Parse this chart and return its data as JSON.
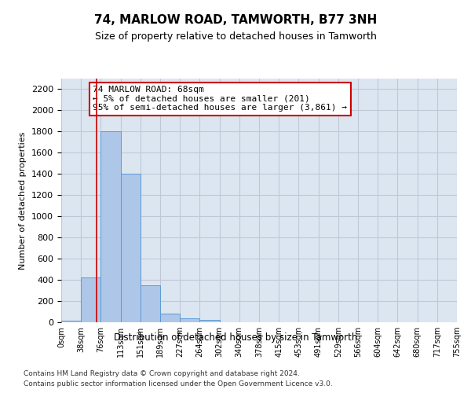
{
  "title": "74, MARLOW ROAD, TAMWORTH, B77 3NH",
  "subtitle": "Size of property relative to detached houses in Tamworth",
  "xlabel": "Distribution of detached houses by size in Tamworth",
  "ylabel": "Number of detached properties",
  "bin_labels": [
    "0sqm",
    "38sqm",
    "76sqm",
    "113sqm",
    "151sqm",
    "189sqm",
    "227sqm",
    "264sqm",
    "302sqm",
    "340sqm",
    "378sqm",
    "415sqm",
    "453sqm",
    "491sqm",
    "529sqm",
    "566sqm",
    "604sqm",
    "642sqm",
    "680sqm",
    "717sqm",
    "755sqm"
  ],
  "bar_values": [
    15,
    420,
    1800,
    1400,
    350,
    80,
    35,
    20,
    0,
    0,
    0,
    0,
    0,
    0,
    0,
    0,
    0,
    0,
    0,
    0
  ],
  "bar_color": "#aec6e8",
  "bar_edge_color": "#5b9bd5",
  "grid_color": "#c0c8d8",
  "background_color": "#dce6f1",
  "annotation_text": "74 MARLOW ROAD: 68sqm\n← 5% of detached houses are smaller (201)\n95% of semi-detached houses are larger (3,861) →",
  "annotation_box_color": "#ffffff",
  "annotation_box_edge_color": "#cc0000",
  "red_line_x": 1.8,
  "ylim": [
    0,
    2300
  ],
  "yticks": [
    0,
    200,
    400,
    600,
    800,
    1000,
    1200,
    1400,
    1600,
    1800,
    2000,
    2200
  ],
  "footer_line1": "Contains HM Land Registry data © Crown copyright and database right 2024.",
  "footer_line2": "Contains public sector information licensed under the Open Government Licence v3.0."
}
